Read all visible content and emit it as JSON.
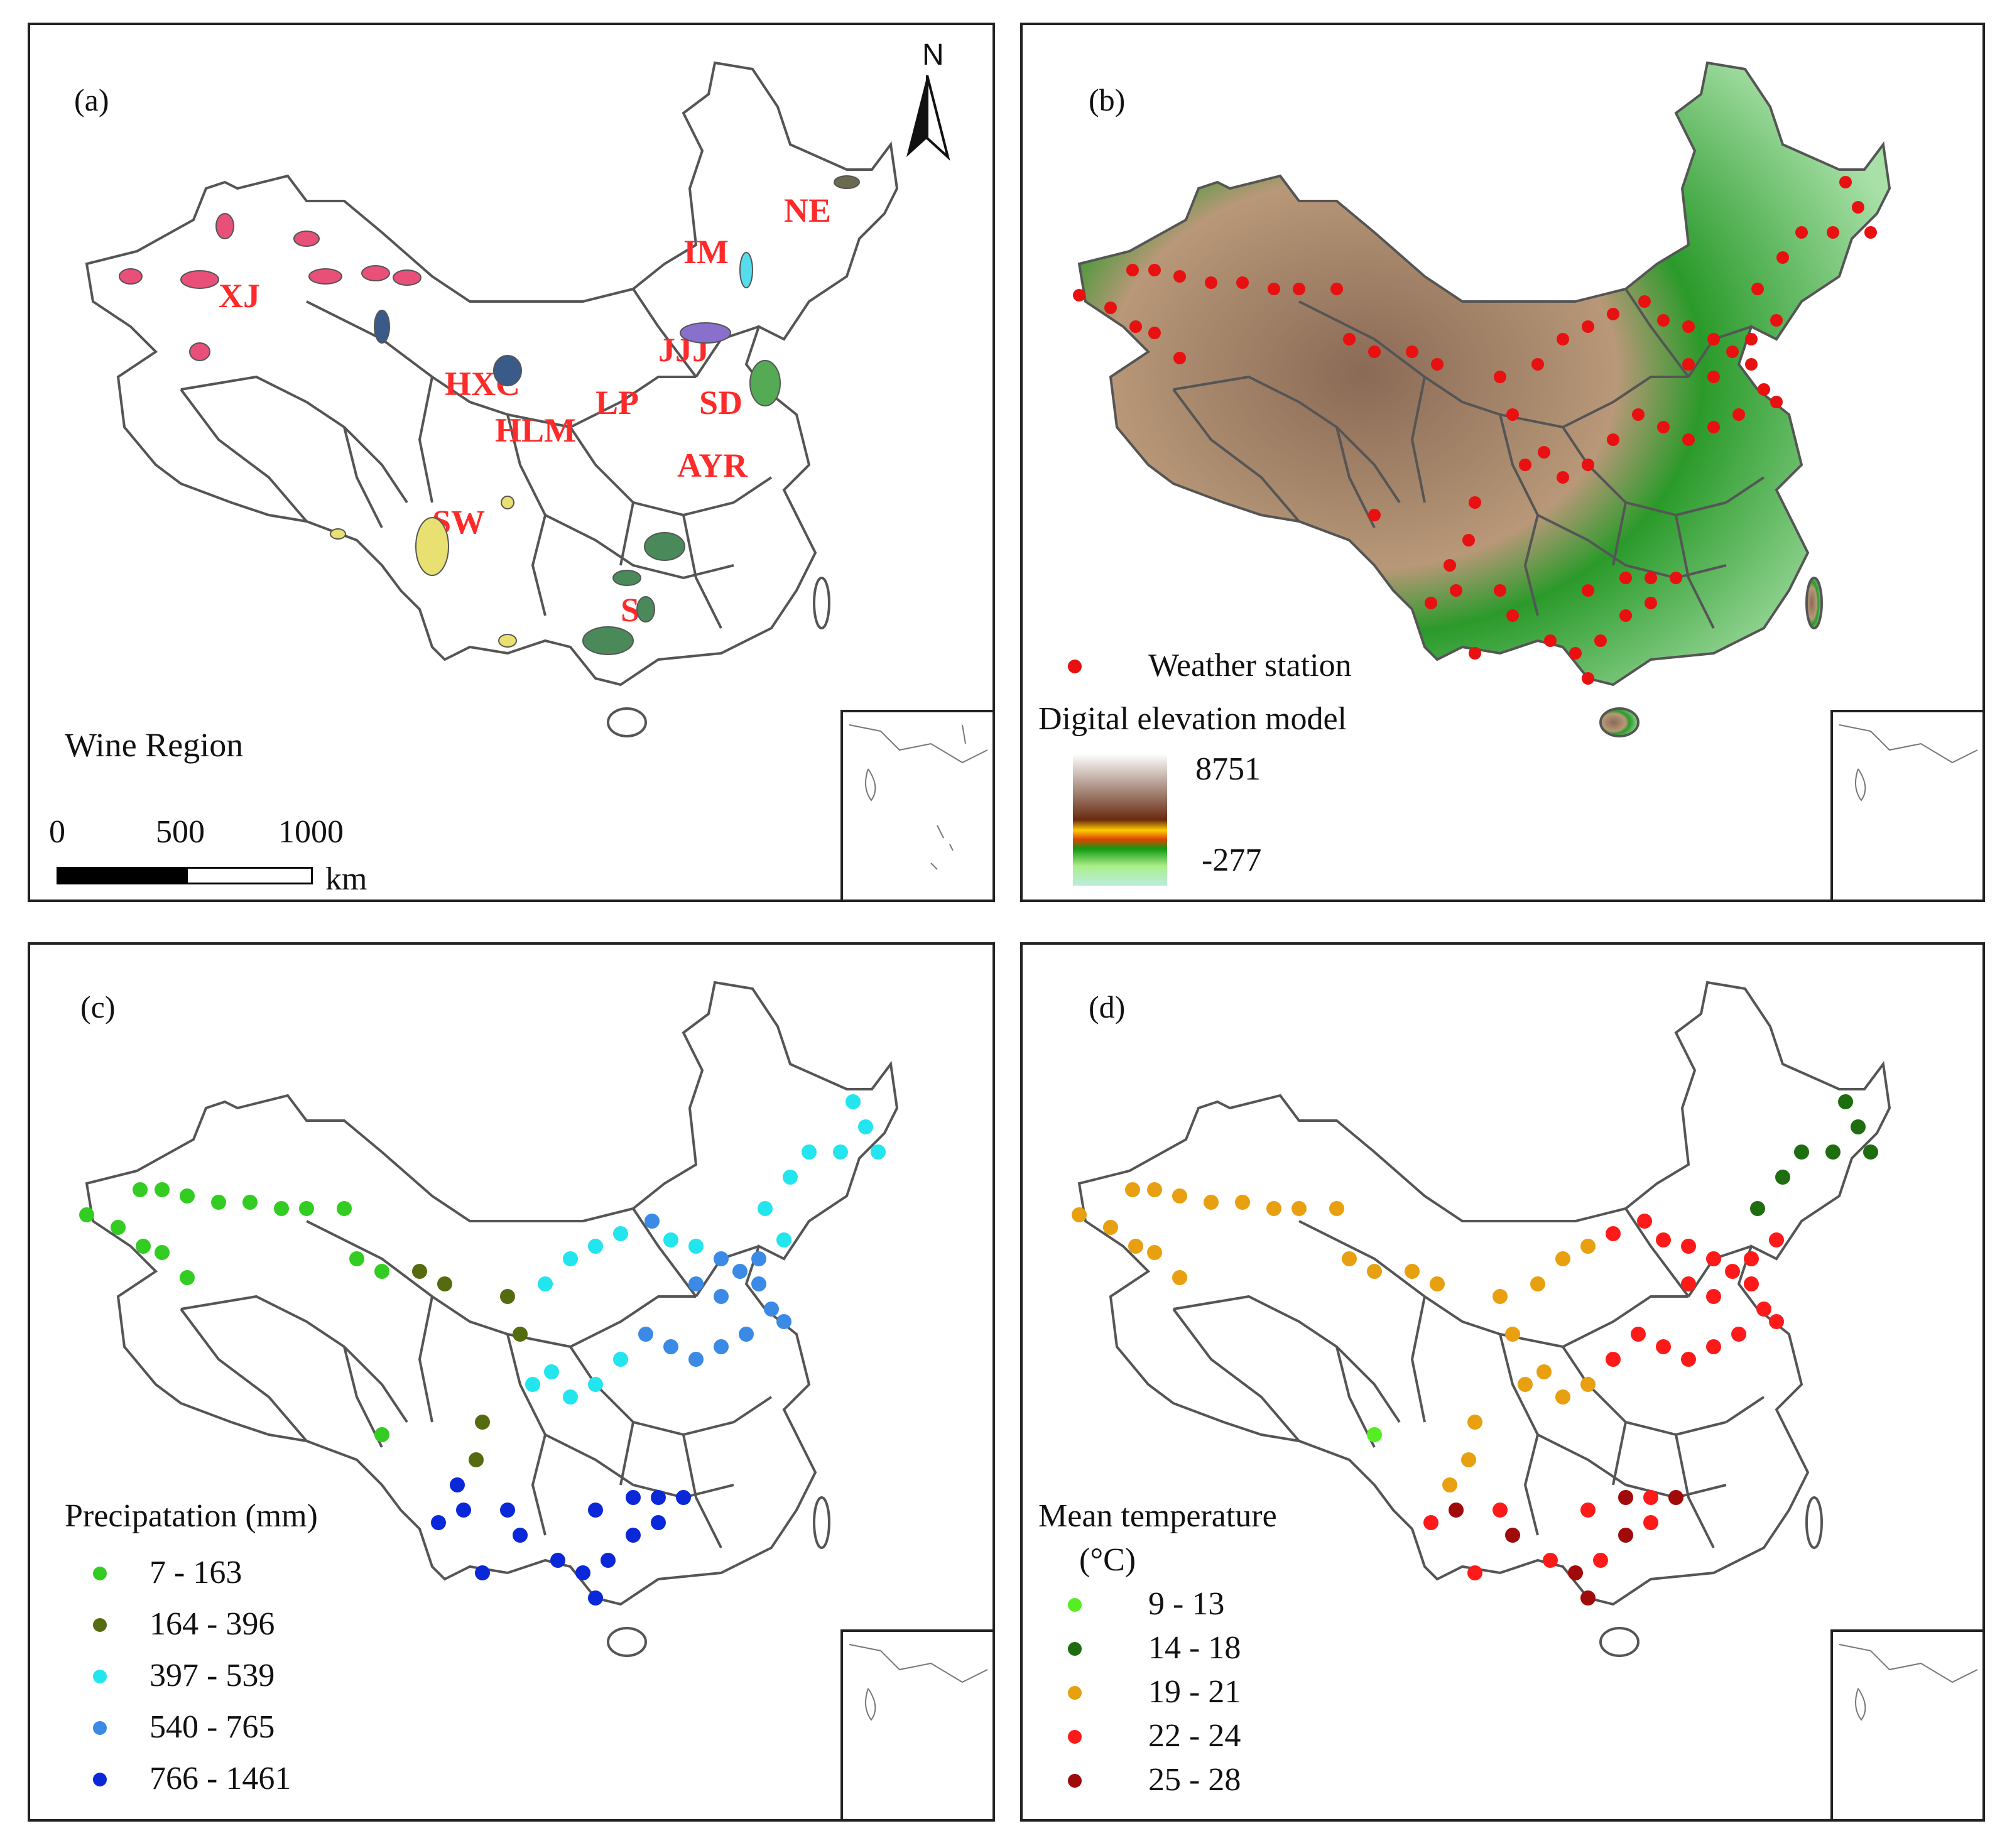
{
  "panels": {
    "a": {
      "label": "(a)",
      "north": "N",
      "legend_title": "Wine Region",
      "regions": [
        "XJ",
        "NE",
        "IM",
        "JJJ",
        "HXC",
        "LP",
        "SD",
        "HLM",
        "AYR",
        "SW",
        "S"
      ],
      "scalebar": {
        "ticks": [
          "0",
          "500",
          "1000"
        ],
        "unit": "km"
      }
    },
    "b": {
      "label": "(b)",
      "station_label": "Weather station",
      "dem_title": "Digital elevation model",
      "dem_max": "8751",
      "dem_min": "-277"
    },
    "c": {
      "label": "(c)",
      "legend_title": "Precipatation (mm)",
      "classes": [
        {
          "range": "7 - 163",
          "color": "#33cc22"
        },
        {
          "range": "164 - 396",
          "color": "#556b10"
        },
        {
          "range": "397 - 539",
          "color": "#22e5ee"
        },
        {
          "range": "540 - 765",
          "color": "#3a8ae6"
        },
        {
          "range": "766 - 1461",
          "color": "#0a28d8"
        }
      ]
    },
    "d": {
      "label": "(d)",
      "legend_title": "Mean temperature",
      "legend_unit": "(°C)",
      "classes": [
        {
          "range": "9 - 13",
          "color": "#55ee22"
        },
        {
          "range": "14 - 18",
          "color": "#1e6e10"
        },
        {
          "range": "19 - 21",
          "color": "#e8a010"
        },
        {
          "range": "22 - 24",
          "color": "#ff1a1a"
        },
        {
          "range": "25 - 28",
          "color": "#a00a0a"
        }
      ]
    }
  },
  "colors": {
    "region_label": "#ff2a2a",
    "station": "#e81010",
    "border": "#555555"
  }
}
